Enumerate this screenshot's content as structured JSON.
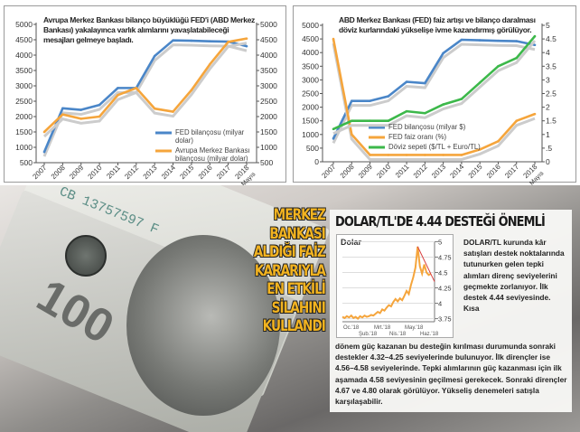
{
  "chart_data": [
    {
      "type": "line",
      "title": "Avrupa Merkez Bankası bilanço büyüklüğü FED'i (ABD Merkez Bankası) yakalayınca varlık alımlarını yavaşlatabileceği mesajları gelmeye başladı.",
      "categories": [
        "2007",
        "2008",
        "2009",
        "2010",
        "2011",
        "2012",
        "2013",
        "2014",
        "2015",
        "2016",
        "2017",
        "2018 Mayıs"
      ],
      "ylim": [
        500,
        5000
      ],
      "y_ticks": [
        500,
        1000,
        1500,
        2000,
        2500,
        3000,
        3500,
        4000,
        4500,
        5000
      ],
      "y2lim": [
        500,
        5000
      ],
      "y2_ticks": [
        500,
        1000,
        1500,
        2000,
        2500,
        3000,
        3500,
        4000,
        4500,
        5000
      ],
      "legend_position": "bottom-right",
      "series": [
        {
          "name": "FED bilançosu (milyar dolar)",
          "color": "#4a86c8",
          "values": [
            850,
            2270,
            2220,
            2380,
            2930,
            2930,
            3970,
            4480,
            4470,
            4450,
            4440,
            4290
          ]
        },
        {
          "name": "Avrupa Merkez Bankası bilançosu (milyar dolar)",
          "color": "#f5a53c",
          "values": [
            1500,
            2070,
            1930,
            2000,
            2700,
            2930,
            2260,
            2160,
            2860,
            3700,
            4430,
            4540
          ]
        }
      ]
    },
    {
      "type": "line",
      "title": "ABD Merkez Bankası (FED) faiz artışı ve bilanço daralması döviz kurlarındaki yükselişe ivme kazandırmış görülüyor.",
      "categories": [
        "2007",
        "2008",
        "2009",
        "2010",
        "2011",
        "2012",
        "2013",
        "2014",
        "2015",
        "2016",
        "2017",
        "2018 Mayıs"
      ],
      "ylim": [
        0,
        5000
      ],
      "y_ticks": [
        0,
        500,
        1000,
        1500,
        2000,
        2500,
        3000,
        3500,
        4000,
        4500,
        5000
      ],
      "y2lim": [
        0,
        5
      ],
      "y2_ticks": [
        "0",
        ".5",
        "1",
        "1.5",
        "2",
        "2.5",
        "3",
        "3.5",
        "4",
        "4.5",
        "5"
      ],
      "legend_position": "bottom-center",
      "series": [
        {
          "name": "FED bilançosu (milyar $)",
          "axis": "left",
          "color": "#4a86c8",
          "values": [
            850,
            2230,
            2230,
            2400,
            2930,
            2880,
            3980,
            4470,
            4450,
            4430,
            4420,
            4280
          ]
        },
        {
          "name": "FED faiz oranı (%)",
          "axis": "right",
          "color": "#f5a53c",
          "values": [
            4.5,
            1.0,
            0.25,
            0.25,
            0.25,
            0.25,
            0.25,
            0.25,
            0.45,
            0.75,
            1.5,
            1.75
          ]
        },
        {
          "name": "Döviz sepeti ($/TL + Euro/TL)",
          "axis": "right",
          "color": "#3cb84a",
          "values": [
            1.2,
            1.5,
            1.5,
            1.5,
            1.85,
            1.78,
            2.1,
            2.3,
            2.9,
            3.5,
            3.8,
            4.6
          ]
        }
      ]
    },
    {
      "type": "line",
      "title": "Dolar",
      "x_ticks": [
        "Oc.'18",
        "Şub.'18",
        "Mrt.'18",
        "Nis.'18",
        "May.'18",
        "Haz.'18"
      ],
      "ylim": [
        3.7,
        5.05
      ],
      "y_ticks": [
        "3.75",
        "4",
        "4.25",
        "4.5",
        "4.75",
        "5"
      ],
      "series": [
        {
          "name": "Dolar/TL",
          "color": "#f5a53c",
          "values": [
            3.78,
            3.76,
            3.79,
            3.77,
            3.8,
            3.76,
            3.78,
            3.75,
            3.79,
            3.77,
            3.8,
            3.78,
            3.79,
            3.81,
            3.8,
            3.83,
            3.86,
            3.84,
            3.9,
            3.88,
            3.93,
            3.97,
            3.95,
            4.02,
            4.07,
            4.03,
            4.08,
            4.05,
            4.12,
            4.2,
            4.15,
            4.3,
            4.42,
            4.58,
            4.92,
            4.6,
            4.48,
            4.63,
            4.5,
            4.46,
            4.48
          ]
        },
        {
          "name": "Trend",
          "color": "#d94040",
          "values": [
            4.92,
            4.35
          ]
        }
      ]
    }
  ],
  "article": {
    "headline_lines": [
      "MERKEZ",
      "BANKASI",
      "ALDIĞI FAİZ",
      "KARARIYLA",
      "EN ETKİLİ",
      "SİLAHINI",
      "KULLANDI"
    ],
    "box_title": "DOLAR/TL'DE 4.44 DESTEĞİ ÖNEMLİ",
    "side_text": "DOLAR/TL kurunda kâr satışları destek noktalarında tutunurken gelen tepki alımları direnç seviyelerini geçmekte zorlanıyor. İlk destek 4.44 seviyesinde. Kısa",
    "body_text": "dönem güç kazanan bu desteğin kırılması durumunda sonraki destekler 4.32–4.25 seviyelerinde bulunuyor. İlk dirençler ise 4.56–4.58 seviyelerinde. Tepki alımlarının güç kazanması için ilk aşamada 4.58 seviyesinin geçilmesi gerekecek. Sonraki dirençler 4.67 ve 4.80 olarak görülüyor. Yükseliş denemeleri satışla karşılaşabilir.",
    "banknote_serial": "CB 13757597 F",
    "banknote_denomination": "100"
  }
}
